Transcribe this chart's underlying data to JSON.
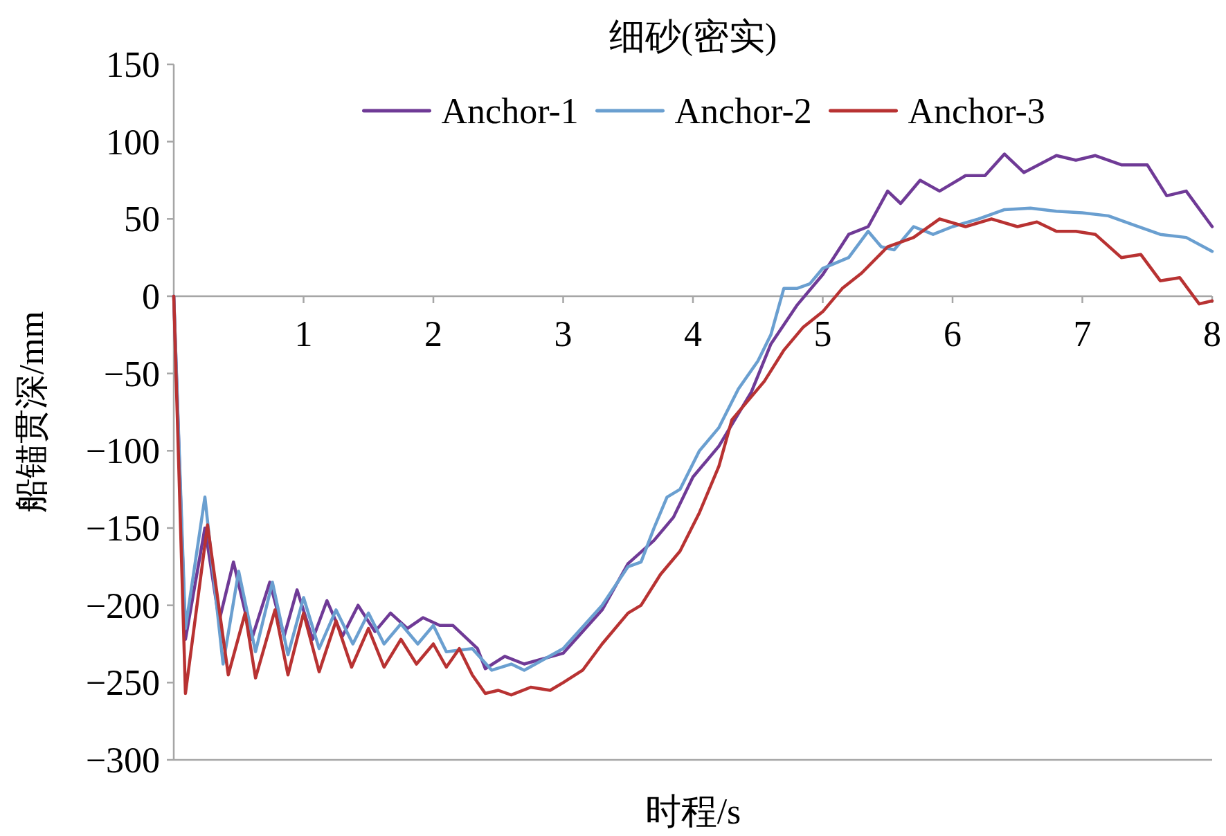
{
  "chart_data": {
    "type": "line",
    "title": "细砂(密实)",
    "xlabel": "时程/s",
    "ylabel": "船锚贯深/mm",
    "xlim": [
      0,
      8
    ],
    "xticks": [
      1,
      2,
      3,
      4,
      5,
      6,
      7,
      8
    ],
    "ylim": [
      -300,
      150
    ],
    "yticks": [
      -300,
      -250,
      -200,
      -150,
      -100,
      -50,
      0,
      50,
      100,
      150
    ],
    "grid": false,
    "legend": "top",
    "line_style": "solid",
    "series": [
      {
        "name": "Anchor-1",
        "color": "#6f3a96",
        "x": [
          0,
          0.09,
          0.24,
          0.35,
          0.46,
          0.6,
          0.74,
          0.85,
          0.95,
          1.07,
          1.18,
          1.3,
          1.42,
          1.55,
          1.67,
          1.8,
          1.92,
          2.05,
          2.15,
          2.34,
          2.4,
          2.55,
          2.7,
          3.0,
          3.3,
          3.5,
          3.7,
          3.85,
          4.0,
          4.2,
          4.45,
          4.6,
          4.8,
          5.0,
          5.2,
          5.35,
          5.5,
          5.6,
          5.75,
          5.9,
          6.1,
          6.25,
          6.4,
          6.55,
          6.8,
          6.95,
          7.1,
          7.3,
          7.5,
          7.65,
          7.8,
          8.0
        ],
        "values": [
          0,
          -222,
          -150,
          -210,
          -172,
          -222,
          -185,
          -220,
          -190,
          -222,
          -197,
          -220,
          -200,
          -217,
          -205,
          -215,
          -208,
          -213,
          -213,
          -228,
          -241,
          -233,
          -238,
          -231,
          -203,
          -173,
          -158,
          -143,
          -117,
          -97,
          -62,
          -31,
          -6,
          14,
          40,
          45,
          68,
          60,
          75,
          68,
          78,
          78,
          92,
          80,
          91,
          88,
          91,
          85,
          85,
          65,
          68,
          45
        ]
      },
      {
        "name": "Anchor-2",
        "color": "#6a9fd0",
        "x": [
          0,
          0.09,
          0.24,
          0.38,
          0.5,
          0.63,
          0.76,
          0.88,
          1.0,
          1.12,
          1.25,
          1.38,
          1.5,
          1.62,
          1.75,
          1.88,
          2.0,
          2.1,
          2.3,
          2.45,
          2.6,
          2.7,
          3.0,
          3.3,
          3.5,
          3.6,
          3.7,
          3.8,
          3.9,
          4.05,
          4.2,
          4.35,
          4.5,
          4.6,
          4.7,
          4.8,
          4.9,
          5.0,
          5.2,
          5.35,
          5.45,
          5.55,
          5.7,
          5.85,
          6.0,
          6.2,
          6.4,
          6.6,
          6.8,
          7.0,
          7.2,
          7.4,
          7.6,
          7.8,
          8.0
        ],
        "values": [
          0,
          -215,
          -130,
          -238,
          -178,
          -230,
          -185,
          -232,
          -195,
          -228,
          -203,
          -225,
          -205,
          -225,
          -212,
          -225,
          -213,
          -230,
          -228,
          -242,
          -238,
          -242,
          -228,
          -200,
          -175,
          -172,
          -150,
          -130,
          -125,
          -100,
          -85,
          -60,
          -42,
          -25,
          5,
          5,
          8,
          18,
          25,
          42,
          32,
          30,
          45,
          40,
          45,
          50,
          56,
          57,
          55,
          54,
          52,
          46,
          40,
          38,
          29
        ]
      },
      {
        "name": "Anchor-3",
        "color": "#b83232",
        "x": [
          0,
          0.09,
          0.26,
          0.42,
          0.55,
          0.63,
          0.78,
          0.88,
          1.0,
          1.12,
          1.25,
          1.37,
          1.5,
          1.62,
          1.75,
          1.87,
          2.0,
          2.1,
          2.2,
          2.3,
          2.4,
          2.5,
          2.6,
          2.75,
          2.9,
          3.0,
          3.15,
          3.3,
          3.5,
          3.6,
          3.75,
          3.9,
          4.05,
          4.2,
          4.3,
          4.45,
          4.55,
          4.7,
          4.85,
          5.0,
          5.15,
          5.3,
          5.5,
          5.7,
          5.9,
          6.1,
          6.3,
          6.5,
          6.65,
          6.8,
          6.95,
          7.1,
          7.3,
          7.45,
          7.6,
          7.75,
          7.9,
          8.0
        ],
        "values": [
          0,
          -257,
          -148,
          -245,
          -205,
          -247,
          -203,
          -245,
          -205,
          -243,
          -210,
          -240,
          -215,
          -240,
          -222,
          -238,
          -225,
          -240,
          -228,
          -245,
          -257,
          -255,
          -258,
          -253,
          -255,
          -250,
          -242,
          -225,
          -205,
          -200,
          -180,
          -165,
          -140,
          -110,
          -80,
          -65,
          -55,
          -35,
          -20,
          -10,
          5,
          15,
          32,
          38,
          50,
          45,
          50,
          45,
          48,
          42,
          42,
          40,
          25,
          27,
          10,
          12,
          -5,
          -3
        ]
      }
    ]
  }
}
